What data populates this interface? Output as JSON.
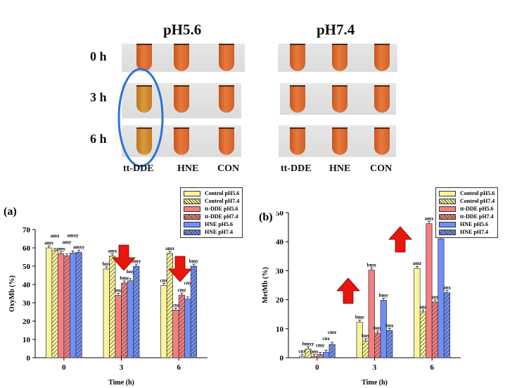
{
  "photo": {
    "groups": [
      {
        "title": "pH5.6",
        "columns": [
          "tt-DDE",
          "HNE",
          "CON"
        ]
      },
      {
        "title": "pH7.4",
        "columns": [
          "tt-DDE",
          "HNE",
          "CON"
        ]
      }
    ],
    "rows": [
      "0 h",
      "3 h",
      "6 h"
    ]
  },
  "legend": [
    "Control pH5.6",
    "Control pH7.4",
    "tt-DDE pH5.6",
    "tt-DDE pH7.4",
    "HNE pH5.6",
    "HNE pH7.4"
  ],
  "colors": {
    "yellow": "#fbf59a",
    "red": "#f47f7f",
    "blue": "#6f8ff5",
    "arrow": "#e8160e",
    "ellipse": "#2a73d9"
  },
  "chart_data": [
    {
      "panel": "(a)",
      "type": "bar",
      "xlabel": "Time (h)",
      "ylabel": "OxyMb (%)",
      "ylim": [
        0,
        70
      ],
      "yticks": [
        0,
        10,
        20,
        30,
        40,
        50,
        60,
        70
      ],
      "categories": [
        "0",
        "3",
        "6"
      ],
      "series": [
        {
          "name": "Control pH5.6",
          "values": [
            60,
            48.5,
            39.5
          ],
          "labels": [
            "amx",
            "bnx",
            "cnx"
          ]
        },
        {
          "name": "Control pH7.4",
          "values": [
            58.5,
            55.5,
            57
          ],
          "labels": [
            "amx",
            "amx",
            "amx"
          ]
        },
        {
          "name": "tt-DDE pH5.6",
          "values": [
            56.8,
            34,
            26
          ],
          "labels": [
            "amy",
            "bnz",
            "cnz"
          ]
        },
        {
          "name": "tt-DDE pH7.4",
          "values": [
            55.7,
            40.8,
            34.2
          ],
          "labels": [
            "amy",
            "bmz",
            "cmz"
          ]
        },
        {
          "name": "HNE pH5.6",
          "values": [
            57.2,
            42,
            32
          ],
          "labels": [
            "amxy",
            "bny",
            "cny"
          ]
        },
        {
          "name": "HNE pH7.4",
          "values": [
            57.6,
            50,
            50
          ],
          "labels": [
            "amxy",
            "bmy",
            "bmy"
          ]
        }
      ],
      "annotations": [
        "down-arrow at 3 h",
        "down-arrow at 6 h"
      ]
    },
    {
      "panel": "(b)",
      "type": "bar",
      "xlabel": "Time (h)",
      "ylabel": "MetMb (%)",
      "ylim": [
        0,
        50
      ],
      "yticks": [
        0,
        10,
        20,
        30,
        40,
        50
      ],
      "categories": [
        "0",
        "3",
        "6"
      ],
      "series": [
        {
          "name": "Control pH5.6",
          "values": [
            0.5,
            12.2,
            30.8
          ],
          "labels": [
            "cnx",
            "bmz",
            "amz"
          ]
        },
        {
          "name": "Control pH7.4",
          "values": [
            3,
            5.8,
            15.8
          ],
          "labels": [
            "bmxy",
            "bny",
            "anz"
          ]
        },
        {
          "name": "tt-DDE pH5.6",
          "values": [
            0.4,
            30.2,
            46.2
          ],
          "labels": [
            "cmy",
            "bmx",
            "amx"
          ]
        },
        {
          "name": "tt-DDE pH7.4",
          "values": [
            1.1,
            8.5,
            19.2
          ],
          "labels": [
            "cmy",
            "bny",
            "any"
          ]
        },
        {
          "name": "HNE pH5.6",
          "values": [
            1.9,
            19.8,
            41
          ],
          "labels": [
            "cnx",
            "bmy",
            "amy"
          ]
        },
        {
          "name": "HNE pH7.4",
          "values": [
            4.6,
            9.4,
            22.4
          ],
          "labels": [
            "cmx",
            "bnx",
            "anx"
          ]
        }
      ],
      "annotations": [
        "up-arrow at 3 h",
        "up-arrow at 6 h"
      ]
    }
  ]
}
